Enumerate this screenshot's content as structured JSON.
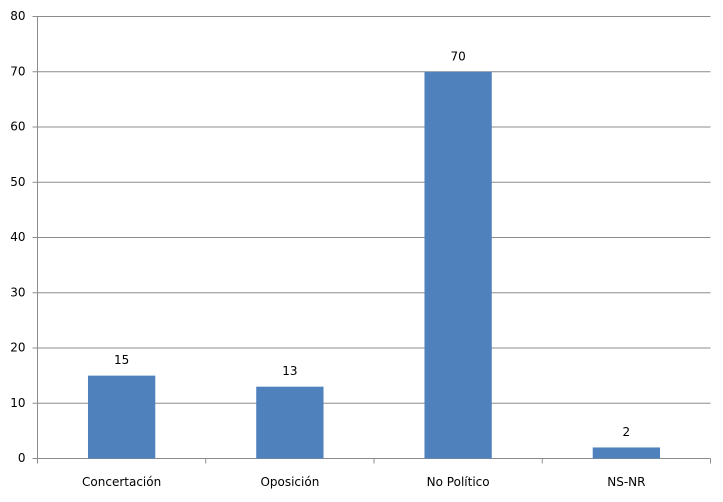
{
  "chart_data": {
    "type": "bar",
    "categories": [
      "Concertación",
      "Oposición",
      "No Político",
      "NS-NR"
    ],
    "values": [
      15,
      13,
      70,
      2
    ],
    "color": "#4f81bd",
    "ylim": [
      0,
      80
    ],
    "yticks": [
      0,
      10,
      20,
      30,
      40,
      50,
      60,
      70,
      80
    ],
    "grid": true
  }
}
